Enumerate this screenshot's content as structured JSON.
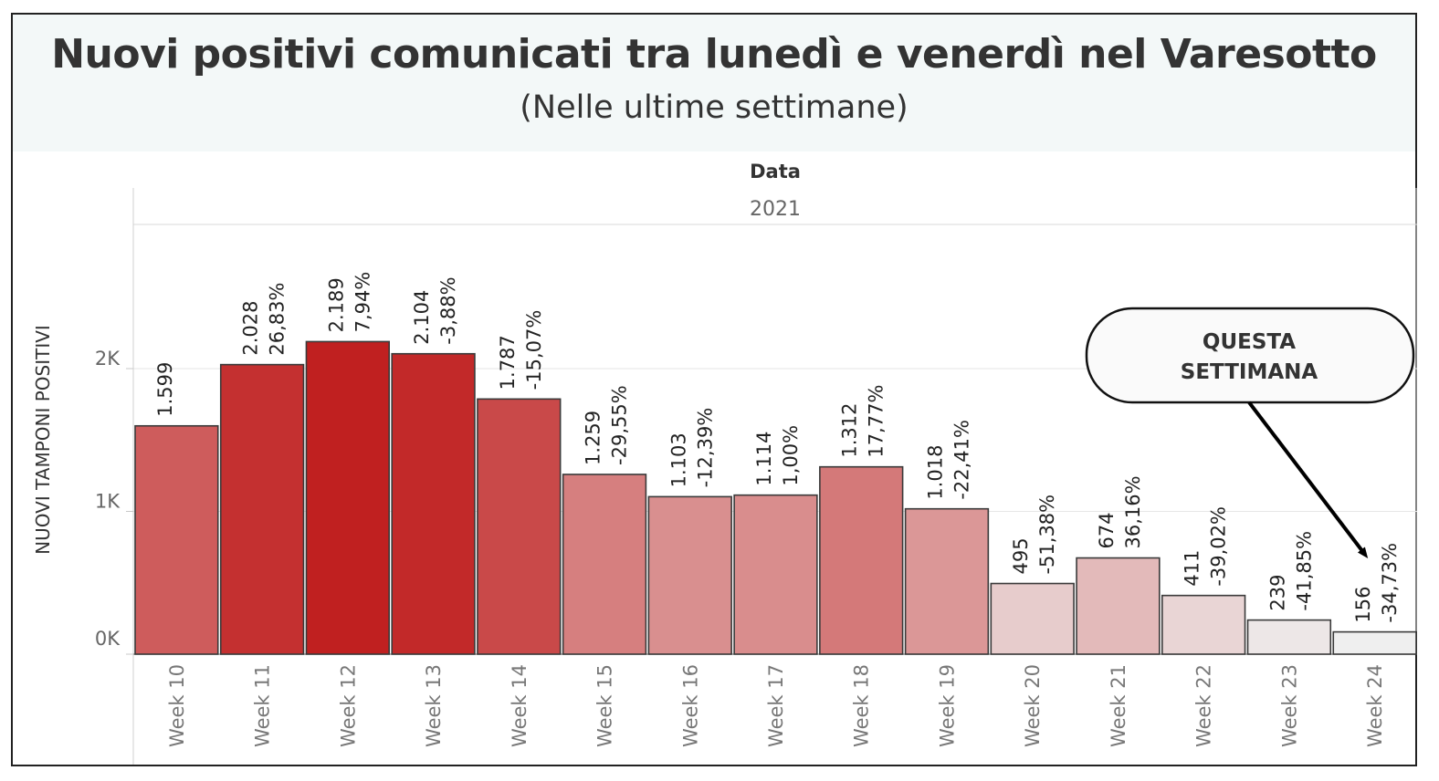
{
  "chart_data": {
    "type": "bar",
    "title": "Nuovi positivi comunicati tra lunedì e venerdì nel Varesotto",
    "subtitle": "(Nelle ultime settimane)",
    "column_header": "Data",
    "year": "2021",
    "ylabel": "NUOVI TAMPONI POSITIVI",
    "yticks": [
      {
        "value": 0,
        "label": "0K"
      },
      {
        "value": 1000,
        "label": "1K"
      },
      {
        "value": 2000,
        "label": "2K"
      }
    ],
    "ylim": [
      0,
      3000
    ],
    "grid": true,
    "categories": [
      "Week 10",
      "Week 11",
      "Week 12",
      "Week 13",
      "Week 14",
      "Week 15",
      "Week 16",
      "Week 17",
      "Week 18",
      "Week 19",
      "Week 20",
      "Week 21",
      "Week 22",
      "Week 23",
      "Week 24"
    ],
    "values": [
      1599,
      2028,
      2189,
      2104,
      1787,
      1259,
      1103,
      1114,
      1312,
      1018,
      495,
      674,
      411,
      239,
      156
    ],
    "value_labels": [
      "1.599",
      "2.028",
      "2.189",
      "2.104",
      "1.787",
      "1.259",
      "1.103",
      "1.114",
      "1.312",
      "1.018",
      "495",
      "674",
      "411",
      "239",
      "156"
    ],
    "change_labels": [
      "",
      "26,83%",
      "7,94%",
      "-3,88%",
      "-15,07%",
      "-29,55%",
      "-12,39%",
      "1,00%",
      "17,77%",
      "-22,41%",
      "-51,38%",
      "36,16%",
      "-39,02%",
      "-41,85%",
      "-34,73%"
    ],
    "color_scale": {
      "low": "#efefef",
      "high": "#c02020"
    },
    "callout": {
      "text_line1": "QUESTA",
      "text_line2": "SETTIMANA",
      "target": "Week 24"
    }
  }
}
